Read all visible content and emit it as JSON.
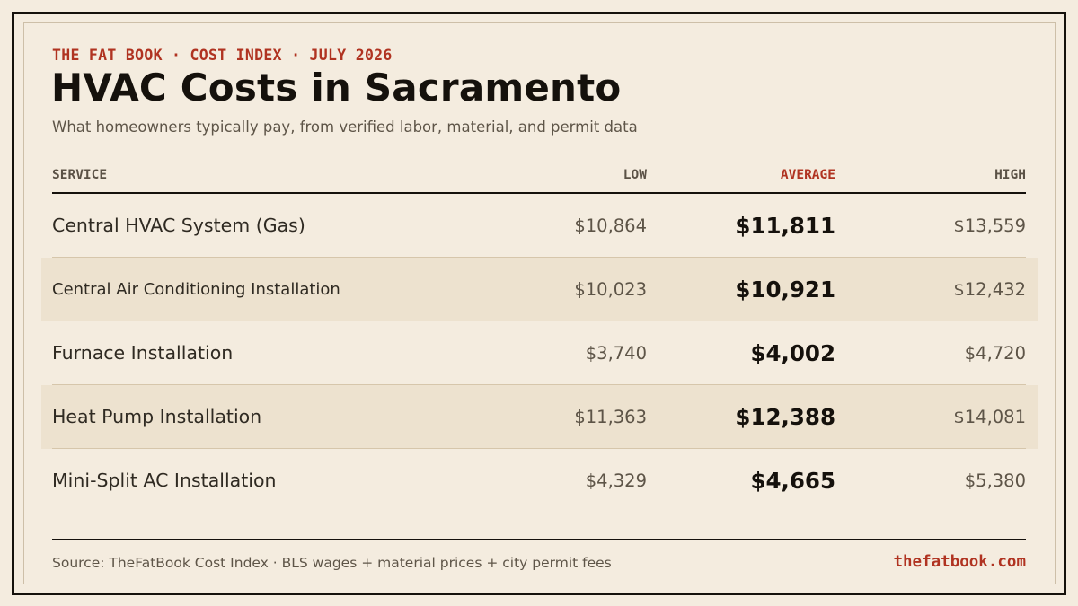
{
  "header": {
    "kicker": "THE FAT BOOK · COST INDEX · JULY 2026",
    "title": "HVAC Costs in Sacramento",
    "subtitle": "What homeowners typically pay, from verified labor, material, and permit data"
  },
  "table": {
    "columns": {
      "service": "SERVICE",
      "low": "LOW",
      "average": "AVERAGE",
      "high": "HIGH"
    },
    "rows": [
      {
        "service": "Central HVAC System (Gas)",
        "low": "$10,864",
        "average": "$11,811",
        "high": "$13,559"
      },
      {
        "service": "Central Air Conditioning Installation",
        "low": "$10,023",
        "average": "$10,921",
        "high": "$12,432"
      },
      {
        "service": "Furnace Installation",
        "low": "$3,740",
        "average": "$4,002",
        "high": "$4,720"
      },
      {
        "service": "Heat Pump Installation",
        "low": "$11,363",
        "average": "$12,388",
        "high": "$14,081"
      },
      {
        "service": "Mini-Split AC Installation",
        "low": "$4,329",
        "average": "$4,665",
        "high": "$5,380"
      }
    ]
  },
  "footer": {
    "source": "Source: TheFatBook Cost Index · BLS wages + material prices + city permit fees",
    "site": "thefatbook.com"
  },
  "colors": {
    "background": "#f4ecdf",
    "alt_row": "#ede2cf",
    "accent": "#b03321",
    "ink": "#15110c"
  }
}
